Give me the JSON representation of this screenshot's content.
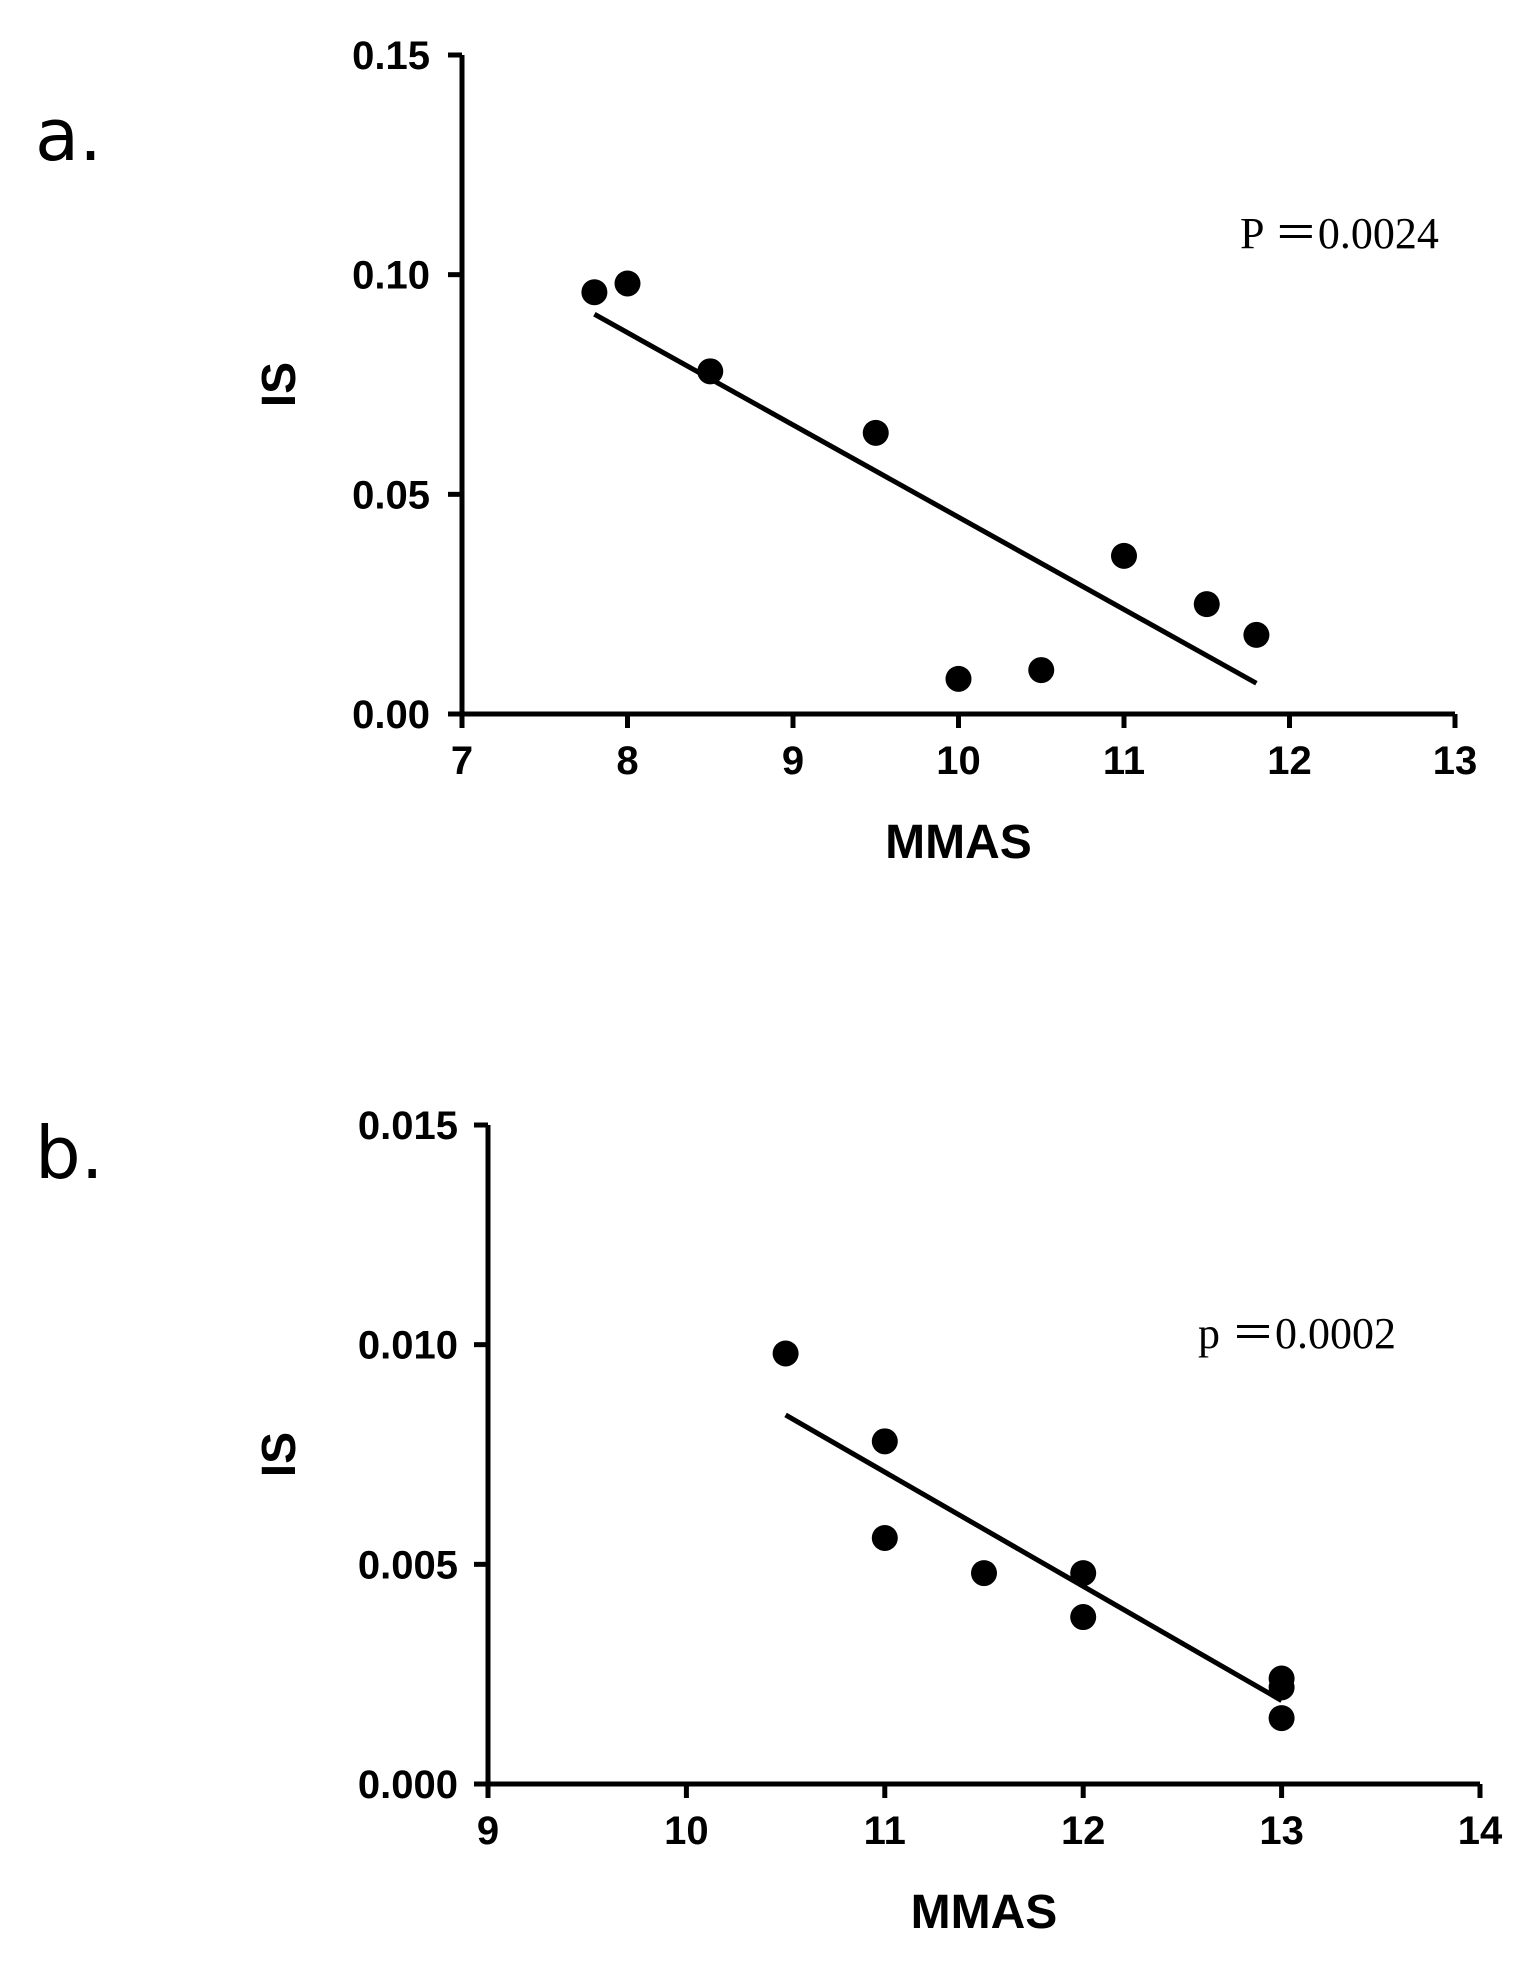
{
  "chart_data": [
    {
      "type": "scatter",
      "panel_label": "a.",
      "xlabel": "MMAS",
      "ylabel": "IS",
      "xlim": [
        7,
        13
      ],
      "ylim": [
        0.0,
        0.15
      ],
      "xticks": [
        "7",
        "8",
        "9",
        "10",
        "11",
        "12",
        "13"
      ],
      "yticks": [
        "0.00",
        "0.05",
        "0.10",
        "0.15"
      ],
      "annotation": "P ＝0.0024",
      "points": [
        {
          "x": 7.8,
          "y": 0.096
        },
        {
          "x": 8.0,
          "y": 0.098
        },
        {
          "x": 8.5,
          "y": 0.078
        },
        {
          "x": 9.5,
          "y": 0.064
        },
        {
          "x": 10.0,
          "y": 0.008
        },
        {
          "x": 10.5,
          "y": 0.01
        },
        {
          "x": 11.0,
          "y": 0.036
        },
        {
          "x": 11.5,
          "y": 0.025
        },
        {
          "x": 11.8,
          "y": 0.018
        }
      ],
      "fit_line": {
        "x": [
          7.8,
          11.8
        ],
        "y": [
          0.091,
          0.007
        ]
      }
    },
    {
      "type": "scatter",
      "panel_label": "b.",
      "xlabel": "MMAS",
      "ylabel": "IS",
      "xlim": [
        9,
        14
      ],
      "ylim": [
        0.0,
        0.015
      ],
      "xticks": [
        "9",
        "10",
        "11",
        "12",
        "13",
        "14"
      ],
      "yticks": [
        "0.000",
        "0.005",
        "0.010",
        "0.015"
      ],
      "annotation": "p ＝0.0002",
      "points": [
        {
          "x": 10.5,
          "y": 0.0098
        },
        {
          "x": 11.0,
          "y": 0.0078
        },
        {
          "x": 11.0,
          "y": 0.0056
        },
        {
          "x": 11.5,
          "y": 0.0048
        },
        {
          "x": 12.0,
          "y": 0.0048
        },
        {
          "x": 12.0,
          "y": 0.0038
        },
        {
          "x": 13.0,
          "y": 0.0024
        },
        {
          "x": 13.0,
          "y": 0.0022
        },
        {
          "x": 13.0,
          "y": 0.0015
        }
      ],
      "fit_line": {
        "x": [
          10.5,
          13.0
        ],
        "y": [
          0.0084,
          0.0019
        ]
      }
    }
  ]
}
